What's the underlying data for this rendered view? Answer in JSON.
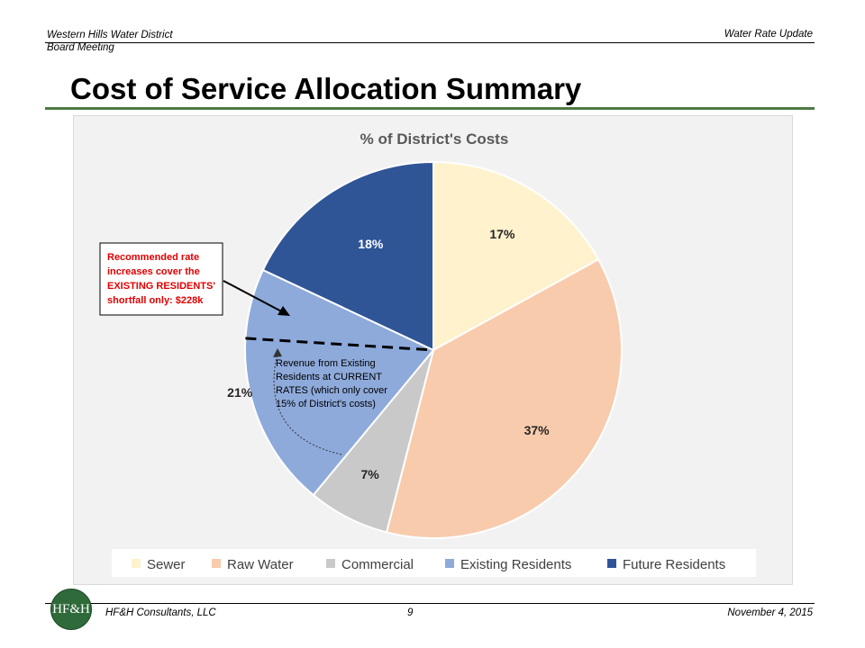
{
  "header": {
    "org": "Western Hills  Water District",
    "meeting": "Board Meeting",
    "topic": "Water Rate Update"
  },
  "slide_title": "Cost of Service Allocation Summary",
  "chart_data": {
    "type": "pie",
    "title": "% of District's Costs",
    "categories": [
      "Sewer",
      "Raw Water",
      "Commercial",
      "Existing Residents",
      "Future Residents"
    ],
    "values": [
      17,
      37,
      7,
      21,
      18
    ],
    "labels": [
      "17%",
      "37%",
      "7%",
      "21%",
      "18%"
    ],
    "colors": [
      "#fff2cc",
      "#f8cbad",
      "#c9c9c9",
      "#8eaadb",
      "#2f5597"
    ],
    "legend_position": "bottom",
    "start_angle_deg": 0,
    "direction": "clockwise",
    "annotations": {
      "callout_box": [
        "Recommended rate",
        "increases cover the",
        "EXISTING RESIDENTS'",
        "shortfall only: $228k"
      ],
      "inner_note": [
        "Revenue from Existing",
        "Residents at CURRENT",
        "RATES (which only cover",
        "15% of District's costs)"
      ],
      "current_rates_share": 15
    }
  },
  "footer": {
    "company": "HF&H Consultants, LLC",
    "page": "9",
    "date": "November  4, 2015",
    "logo_text": "HF&H"
  }
}
